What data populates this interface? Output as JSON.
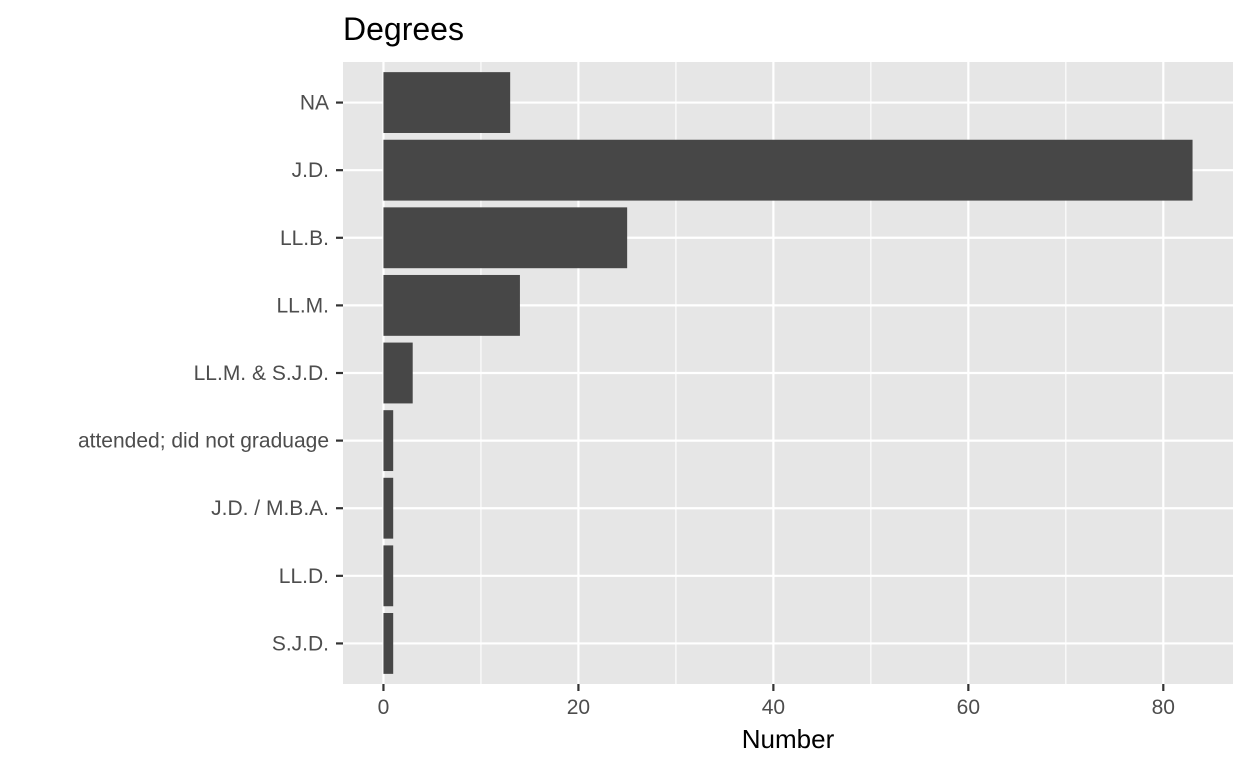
{
  "chart_data": {
    "type": "bar",
    "orientation": "horizontal",
    "title": "Degrees",
    "xlabel": "Number",
    "ylabel": "",
    "categories": [
      "NA",
      "J.D.",
      "LL.B.",
      "LL.M.",
      "LL.M. & S.J.D.",
      "attended; did not graduage",
      "J.D. / M.B.A.",
      "LL.D.",
      "S.J.D."
    ],
    "values": [
      13,
      83,
      25,
      14,
      3,
      1,
      1,
      1,
      1
    ],
    "xlim": [
      -4.15,
      87.15
    ],
    "x_ticks": [
      0,
      20,
      40,
      60,
      80
    ],
    "grid": true,
    "legend": "none",
    "colors": {
      "bar": "#474747",
      "panel": "#e6e6e6",
      "grid": "#ffffff",
      "tick": "#333333",
      "tick_label": "#4d4d4d"
    }
  }
}
